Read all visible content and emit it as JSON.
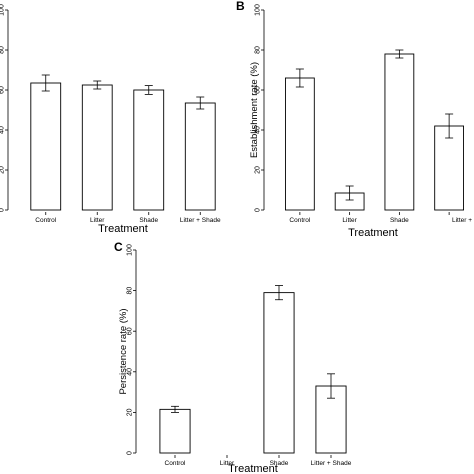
{
  "colors": {
    "bar_fill": "#ffffff",
    "stroke": "#000000"
  },
  "chart_data": [
    {
      "panel": "",
      "type": "bar",
      "categories": [
        "Control",
        "Litter",
        "Shade",
        "Litter + Shade"
      ],
      "values": [
        63.5,
        62.5,
        60,
        53.5
      ],
      "error": [
        4,
        2,
        2.2,
        3
      ],
      "title": "",
      "xlabel": "Treatment",
      "ylabel": "",
      "ylim": [
        0,
        100
      ],
      "yticks": [
        0,
        20,
        40,
        60,
        80,
        100
      ],
      "grid": false
    },
    {
      "panel": "B",
      "type": "bar",
      "categories": [
        "Control",
        "Litter",
        "Shade",
        "Litter + S"
      ],
      "values": [
        66,
        8.5,
        78,
        42
      ],
      "error": [
        4.5,
        3.5,
        2,
        6
      ],
      "title": "",
      "xlabel": "Treatment",
      "ylabel": "Establishment rate (%)",
      "ylim": [
        0,
        100
      ],
      "yticks": [
        0,
        20,
        40,
        60,
        80,
        100
      ],
      "grid": false
    },
    {
      "panel": "C",
      "type": "bar",
      "categories": [
        "Control",
        "Litter",
        "Shade",
        "Litter + Shade"
      ],
      "values": [
        21.5,
        0,
        79,
        33
      ],
      "error": [
        1.5,
        0,
        3.5,
        6
      ],
      "title": "",
      "xlabel": "Treatment",
      "ylabel": "Persistence rate (%)",
      "ylim": [
        0,
        100
      ],
      "yticks": [
        0,
        20,
        40,
        60,
        80,
        100
      ],
      "grid": false
    }
  ]
}
